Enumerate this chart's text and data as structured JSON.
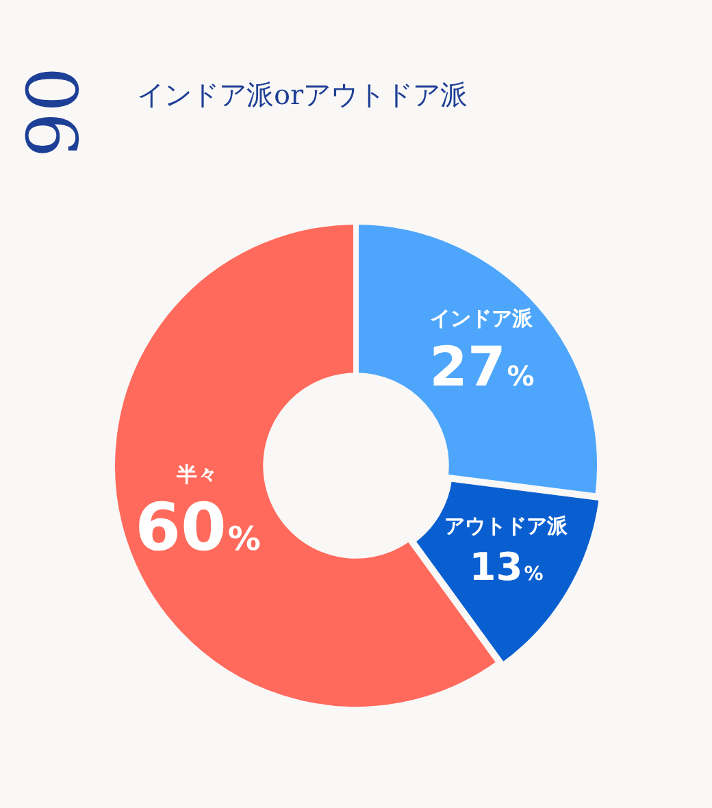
{
  "chart_data": {
    "type": "donut",
    "title": "インドア派orアウトドア派",
    "categories": [
      "インドア派",
      "アウトドア派",
      "半々"
    ],
    "values": [
      27,
      13,
      60
    ],
    "colors": [
      "#4da6fb",
      "#0a5fd0",
      "#ff6a5c"
    ],
    "value_labels": [
      "27%",
      "13%",
      "60%"
    ],
    "annotations": [
      "06"
    ]
  }
}
